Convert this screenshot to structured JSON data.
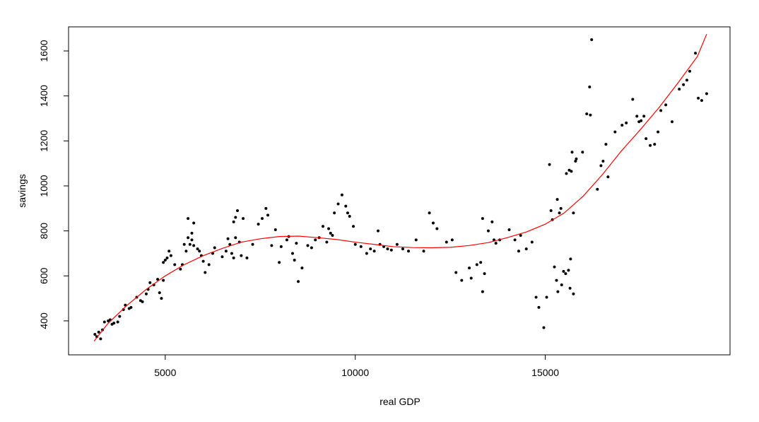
{
  "chart_data": {
    "type": "scatter",
    "x_label": "real GDP",
    "y_label": "savings",
    "xlim": [
      2456,
      19860
    ],
    "ylim": [
      249,
      1707
    ],
    "xticks": [
      5000,
      10000,
      15000
    ],
    "yticks": [
      400,
      600,
      800,
      1000,
      1200,
      1400,
      1600
    ],
    "series": [
      {
        "type": "scatter",
        "color": "#000000",
        "x": [
          3150,
          3200,
          3250,
          3300,
          3350,
          3400,
          3500,
          3550,
          3600,
          3650,
          3750,
          3800,
          3900,
          3950,
          4050,
          4100,
          4250,
          4350,
          4400,
          4500,
          4550,
          4600,
          4700,
          4800,
          4850,
          4900,
          4950,
          4950,
          5000,
          5050,
          5100,
          5150,
          5250,
          5400,
          5450,
          5500,
          5550,
          5600,
          5600,
          5650,
          5700,
          5700,
          5750,
          5750,
          5850,
          5900,
          5950,
          6000,
          6050,
          6150,
          6250,
          6300,
          6500,
          6600,
          6650,
          6700,
          6750,
          6800,
          6800,
          6850,
          6850,
          6900,
          6950,
          7000,
          7050,
          7150,
          7300,
          7450,
          7550,
          7650,
          7700,
          7800,
          7900,
          8000,
          8050,
          8200,
          8250,
          8350,
          8400,
          8450,
          8500,
          8600,
          8750,
          8850,
          8950,
          9050,
          9150,
          9250,
          9300,
          9350,
          9400,
          9450,
          9550,
          9650,
          9750,
          9800,
          9850,
          9950,
          10000,
          10150,
          10300,
          10400,
          10500,
          10600,
          10650,
          10750,
          10850,
          10950,
          11100,
          11250,
          11400,
          11600,
          11800,
          11950,
          12050,
          12150,
          12400,
          12550,
          12650,
          12800,
          13000,
          13050,
          13200,
          13300,
          13350,
          13350,
          13400,
          13500,
          13600,
          13650,
          13700,
          13800,
          14050,
          14200,
          14300,
          14350,
          14500,
          14650,
          14757,
          14830,
          14960,
          15035,
          15110,
          15150,
          15240,
          15185,
          15295,
          15330,
          15315,
          15370,
          15430,
          15410,
          15480,
          15555,
          15535,
          15630,
          15610,
          15650,
          15665,
          15705,
          15685,
          15740,
          15740,
          15795,
          15815,
          15980,
          16090,
          16185,
          16165,
          16220,
          16370,
          16465,
          16520,
          16595,
          16650,
          16835,
          17020,
          17130,
          17300,
          17410,
          17465,
          17520,
          17595,
          17650,
          17760,
          17875,
          17965,
          18040,
          18170,
          18335,
          18525,
          18635,
          18725,
          18800,
          18950,
          19025,
          19115,
          19245
        ],
        "y": [
          340,
          330,
          350,
          320,
          360,
          395,
          400,
          405,
          385,
          390,
          395,
          420,
          450,
          470,
          455,
          460,
          505,
          490,
          485,
          520,
          540,
          570,
          560,
          585,
          525,
          500,
          580,
          660,
          670,
          680,
          710,
          690,
          650,
          630,
          650,
          740,
          710,
          855,
          770,
          740,
          790,
          760,
          835,
          735,
          720,
          710,
          690,
          665,
          615,
          650,
          700,
          725,
          685,
          710,
          765,
          740,
          700,
          840,
          680,
          860,
          770,
          890,
          750,
          690,
          855,
          680,
          740,
          830,
          855,
          900,
          870,
          735,
          805,
          660,
          730,
          760,
          775,
          700,
          670,
          745,
          575,
          635,
          735,
          725,
          760,
          770,
          820,
          750,
          810,
          790,
          780,
          880,
          920,
          960,
          910,
          880,
          865,
          820,
          740,
          730,
          700,
          720,
          710,
          800,
          740,
          730,
          720,
          715,
          740,
          720,
          710,
          760,
          710,
          880,
          835,
          810,
          750,
          760,
          615,
          580,
          635,
          590,
          650,
          660,
          855,
          530,
          610,
          800,
          840,
          760,
          745,
          760,
          805,
          760,
          710,
          780,
          720,
          750,
          505,
          460,
          370,
          505,
          1095,
          890,
          640,
          850,
          580,
          530,
          940,
          880,
          560,
          900,
          620,
          1055,
          610,
          1070,
          625,
          545,
          675,
          1150,
          1065,
          520,
          880,
          1110,
          1120,
          1150,
          1320,
          1315,
          1440,
          1650,
          985,
          1090,
          1110,
          1185,
          1040,
          1240,
          1270,
          1280,
          1385,
          1310,
          1285,
          1290,
          1310,
          1210,
          1180,
          1185,
          1240,
          1335,
          1360,
          1285,
          1430,
          1450,
          1470,
          1510,
          1590,
          1390,
          1380,
          1410
        ]
      },
      {
        "type": "line",
        "color": "#ff0000",
        "x": [
          3127,
          3500,
          4000,
          4500,
          5000,
          5500,
          6000,
          6500,
          7000,
          7500,
          8000,
          8500,
          9000,
          9500,
          10000,
          10500,
          11000,
          11500,
          12000,
          12500,
          13000,
          13500,
          14000,
          14500,
          15000,
          15500,
          16000,
          16500,
          17000,
          17500,
          18000,
          18500,
          19000,
          19246
        ],
        "y": [
          310,
          390,
          470,
          540,
          600,
          650,
          690,
          722,
          750,
          765,
          775,
          777,
          770,
          762,
          750,
          740,
          730,
          726,
          725,
          727,
          735,
          748,
          770,
          795,
          830,
          880,
          955,
          1050,
          1155,
          1250,
          1350,
          1460,
          1575,
          1675
        ]
      }
    ]
  }
}
